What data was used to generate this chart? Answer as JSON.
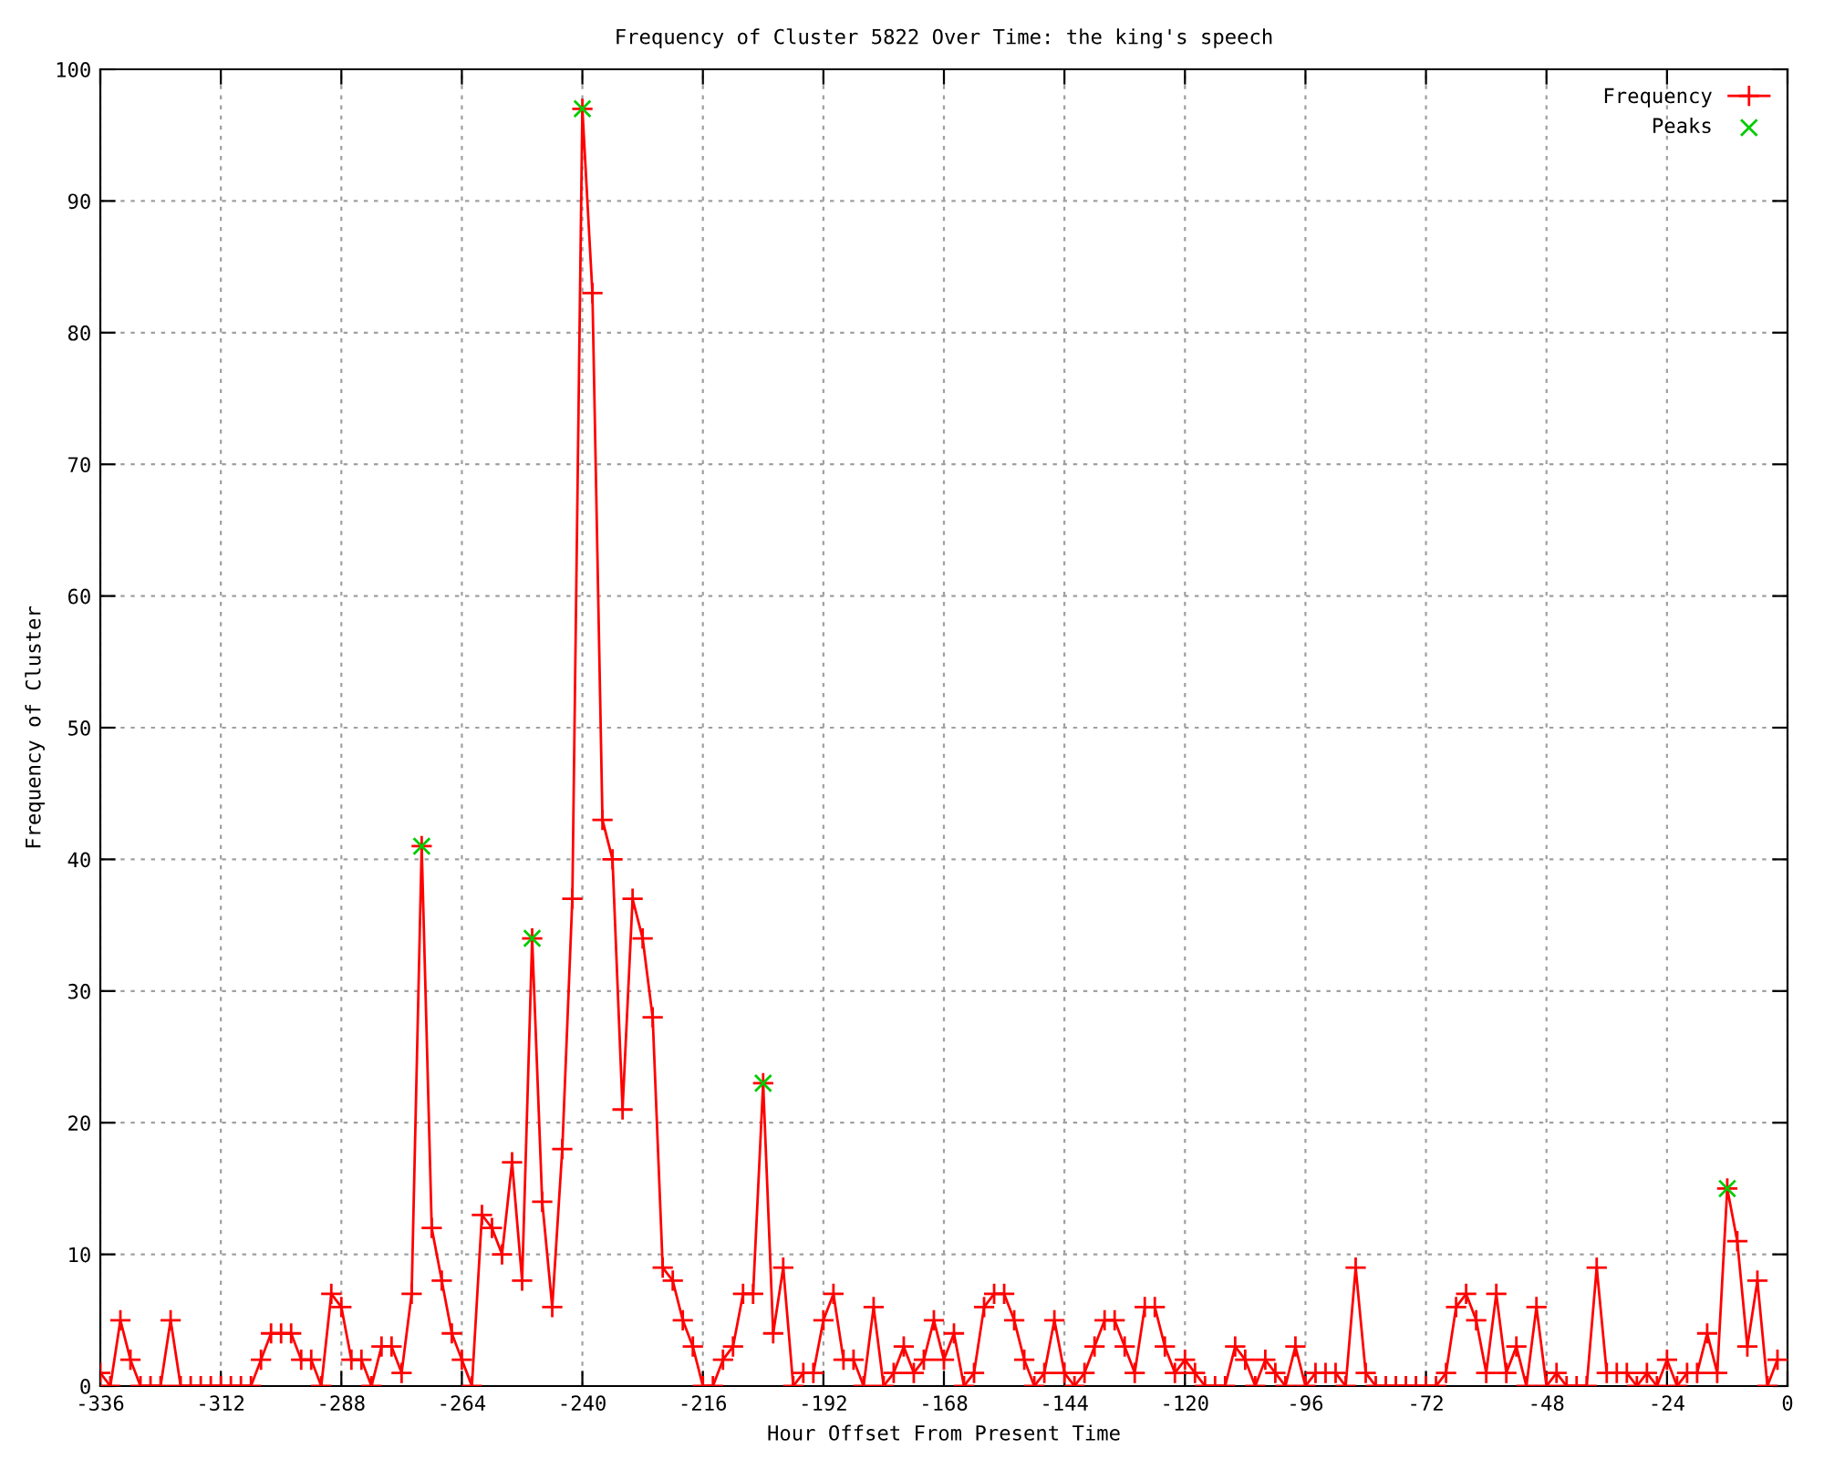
{
  "chart_data": {
    "type": "line",
    "title": "Frequency of Cluster 5822 Over Time: the king's speech",
    "xlabel": "Hour Offset From Present Time",
    "ylabel": "Frequency of Cluster",
    "xlim": [
      -336,
      0
    ],
    "xticks": [
      -336,
      -312,
      -288,
      -264,
      -240,
      -216,
      -192,
      -168,
      -144,
      -120,
      -96,
      -72,
      -48,
      -24,
      0
    ],
    "ylim": [
      0,
      100
    ],
    "yticks": [
      0,
      10,
      20,
      30,
      40,
      50,
      60,
      70,
      80,
      90,
      100
    ],
    "grid": true,
    "legend": "top right",
    "series": [
      {
        "name": "Frequency",
        "color": "#ff0000",
        "marker": "cross",
        "line_style": "solid",
        "x": [
          -336,
          -334,
          -332,
          -330,
          -328,
          -326,
          -324,
          -322,
          -320,
          -318,
          -316,
          -314,
          -312,
          -310,
          -308,
          -306,
          -304,
          -302,
          -300,
          -298,
          -296,
          -294,
          -292,
          -290,
          -288,
          -286,
          -284,
          -282,
          -280,
          -278,
          -276,
          -274,
          -272,
          -270,
          -268,
          -266,
          -264,
          -262,
          -260,
          -258,
          -256,
          -254,
          -252,
          -250,
          -248,
          -246,
          -244,
          -242,
          -240,
          -238,
          -236,
          -234,
          -232,
          -230,
          -228,
          -226,
          -224,
          -222,
          -220,
          -218,
          -216,
          -214,
          -212,
          -210,
          -208,
          -206,
          -204,
          -202,
          -200,
          -198,
          -196,
          -194,
          -192,
          -190,
          -188,
          -186,
          -184,
          -182,
          -180,
          -178,
          -176,
          -174,
          -172,
          -170,
          -168,
          -166,
          -164,
          -162,
          -160,
          -158,
          -156,
          -154,
          -152,
          -150,
          -148,
          -146,
          -144,
          -142,
          -140,
          -138,
          -136,
          -134,
          -132,
          -130,
          -128,
          -126,
          -124,
          -122,
          -120,
          -118,
          -116,
          -114,
          -112,
          -110,
          -108,
          -106,
          -104,
          -102,
          -100,
          -98,
          -96,
          -94,
          -92,
          -90,
          -88,
          -86,
          -84,
          -82,
          -80,
          -78,
          -76,
          -74,
          -72,
          -70,
          -68,
          -66,
          -64,
          -62,
          -60,
          -58,
          -56,
          -54,
          -52,
          -50,
          -48,
          -46,
          -44,
          -42,
          -40,
          -38,
          -36,
          -34,
          -32,
          -30,
          -28,
          -26,
          -24,
          -22,
          -20,
          -18,
          -16,
          -14,
          -12,
          -10,
          -8,
          -6,
          -4,
          -2
        ],
        "values": [
          1,
          0,
          5,
          2,
          0,
          0,
          0,
          5,
          0,
          0,
          0,
          0,
          0,
          0,
          0,
          0,
          2,
          4,
          4,
          4,
          2,
          2,
          0,
          7,
          6,
          2,
          2,
          0,
          3,
          3,
          1,
          7,
          41,
          12,
          8,
          4,
          2,
          0,
          13,
          12,
          10,
          17,
          8,
          34,
          14,
          6,
          18,
          37,
          97,
          83,
          43,
          40,
          21,
          37,
          34,
          28,
          9,
          8,
          5,
          3,
          0,
          0,
          2,
          3,
          7,
          7,
          23,
          4,
          9,
          0,
          1,
          1,
          5,
          7,
          2,
          2,
          0,
          6,
          0,
          1,
          3,
          1,
          2,
          5,
          2,
          4,
          0,
          1,
          6,
          7,
          7,
          5,
          2,
          0,
          1,
          5,
          1,
          0,
          1,
          3,
          5,
          5,
          3,
          1,
          6,
          6,
          3,
          1,
          2,
          1,
          0,
          0,
          0,
          3,
          2,
          0,
          2,
          1,
          0,
          3,
          0,
          1,
          1,
          1,
          0,
          9,
          1,
          0,
          0,
          0,
          0,
          0,
          0,
          0,
          1,
          6,
          7,
          5,
          1,
          7,
          1,
          3,
          0,
          6,
          0,
          1,
          0,
          0,
          0,
          9,
          1,
          1,
          1,
          0,
          1,
          0,
          2,
          0,
          1,
          1,
          4,
          1,
          15,
          11,
          3,
          8,
          0,
          2
        ]
      },
      {
        "name": "Peaks",
        "type": "scatter",
        "color": "#00cc00",
        "marker": "cross",
        "x": [
          -272,
          -250,
          -240,
          -204,
          -12
        ],
        "values": [
          41,
          34,
          97,
          23,
          15
        ]
      }
    ]
  }
}
